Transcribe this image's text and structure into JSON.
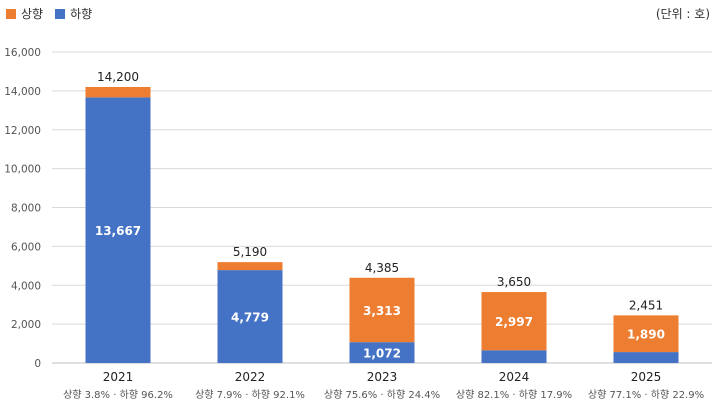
{
  "unit_label": "(단위 : 호)",
  "colors": {
    "up": "#ED7D31",
    "down": "#4472C4",
    "grid": "#d9d9d9",
    "text": "#333333"
  },
  "chart_data": {
    "type": "bar",
    "stacked": true,
    "categories": [
      "2021",
      "2022",
      "2023",
      "2024",
      "2025"
    ],
    "series": [
      {
        "name": "하향",
        "values": [
          13667,
          4779,
          1072,
          653,
          561
        ],
        "labels": [
          "13,667",
          "4,779",
          "1,072",
          "",
          ""
        ]
      },
      {
        "name": "상향",
        "values": [
          533,
          411,
          3313,
          2997,
          1890
        ],
        "labels": [
          "",
          "",
          "3,313",
          "2,997",
          "1,890"
        ]
      }
    ],
    "totals": [
      "14,200",
      "5,190",
      "4,385",
      "3,650",
      "2,451"
    ],
    "sublabels": [
      "상향 3.8% · 하향 96.2%",
      "상향 7.9% · 하향 92.1%",
      "상향 75.6% · 하향 24.4%",
      "상향 82.1% · 하향 17.9%",
      "상향 77.1% · 하향 22.9%"
    ],
    "yticks": [
      "0",
      "2,000",
      "4,000",
      "6,000",
      "8,000",
      "10,000",
      "12,000",
      "14,000",
      "16,000"
    ],
    "ylim": [
      0,
      16000
    ],
    "grid": true,
    "legend": "top-left"
  }
}
